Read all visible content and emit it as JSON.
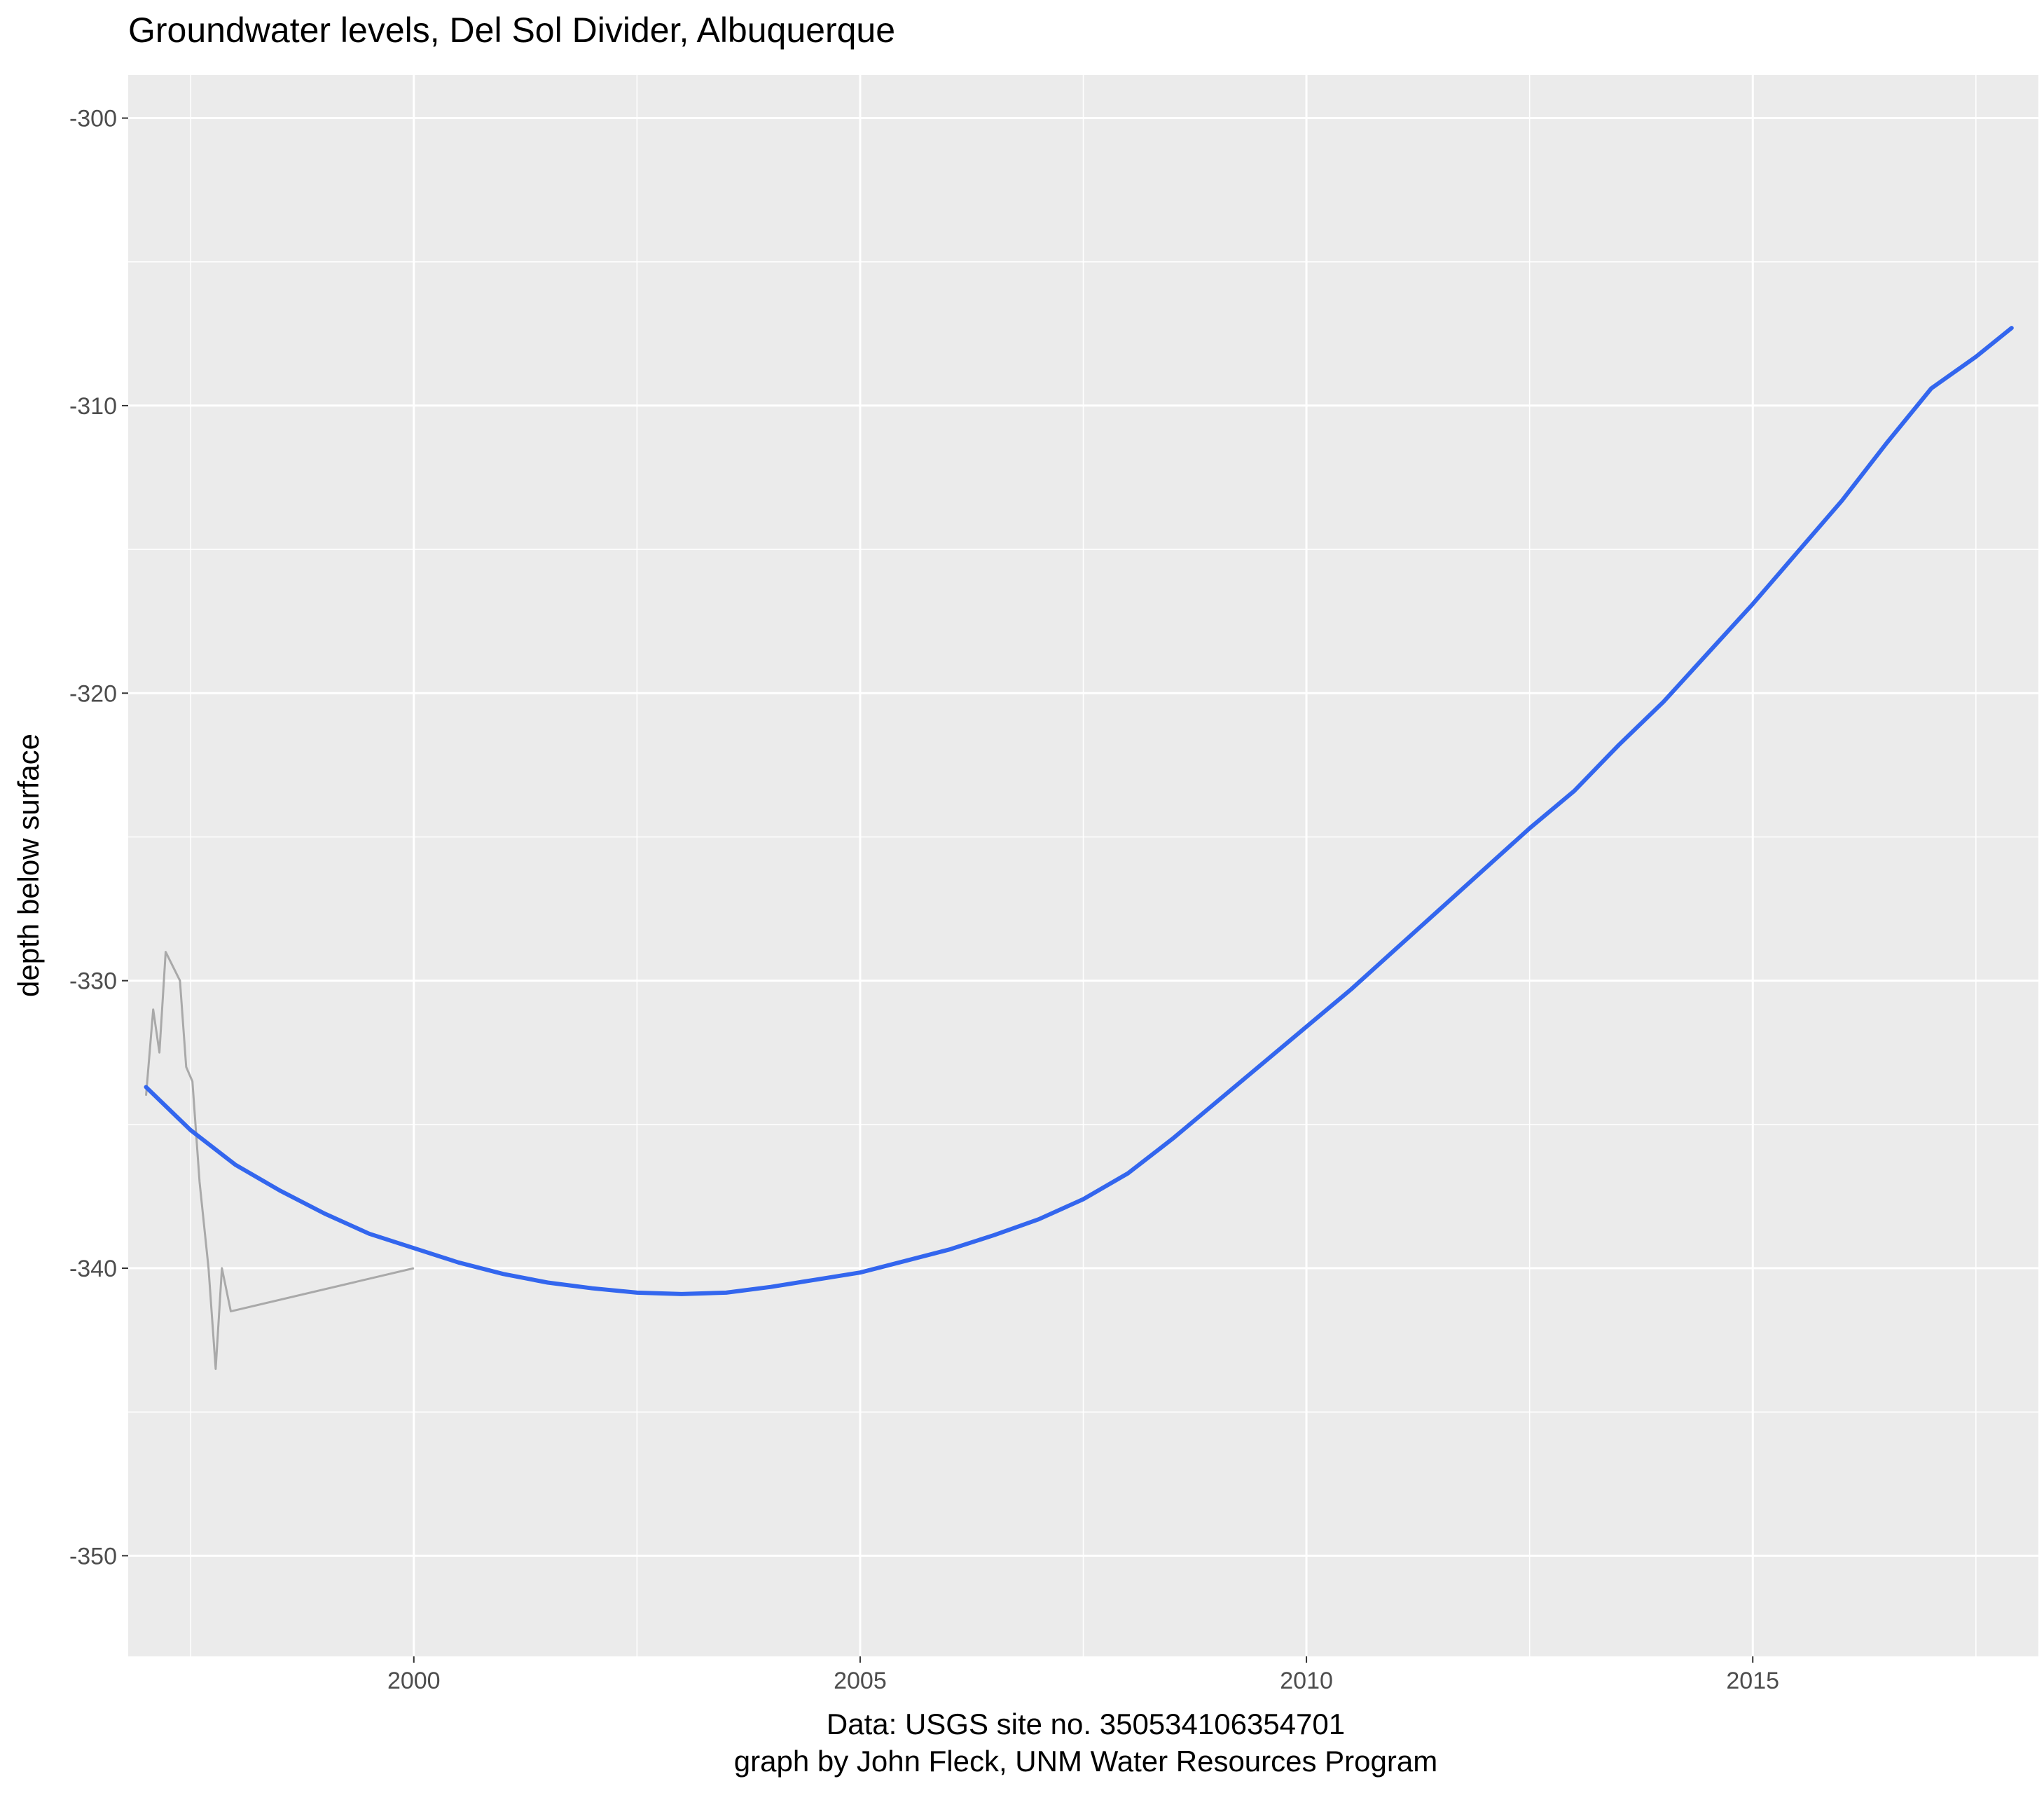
{
  "chart_data": {
    "type": "line",
    "title": "Groundwater levels, Del Sol Divider, Albuquerque",
    "xlabel_lines": [
      "Data: USGS site no. 350534106354701",
      "graph by John Fleck, UNM Water Resources Program"
    ],
    "ylabel": "depth below surface",
    "xlim": [
      1996.8,
      2018.2
    ],
    "ylim": [
      -353.5,
      -298.5
    ],
    "x_ticks": [
      2000,
      2005,
      2010,
      2015
    ],
    "x_tick_labels": [
      "2000",
      "2005",
      "2010",
      "2015"
    ],
    "y_ticks": [
      -350,
      -340,
      -330,
      -320,
      -310,
      -300
    ],
    "y_tick_labels": [
      "-350",
      "-340",
      "-330",
      "-320",
      "-310",
      "-300"
    ],
    "grid": true,
    "legend": "none",
    "colors": {
      "panel_background": "#ebebeb",
      "grid_line": "#ffffff",
      "raw_series": "#a9a9a9",
      "smooth_series": "#3366ee"
    },
    "series": [
      {
        "role": "observed",
        "points": [
          [
            1997.0,
            -334.0
          ],
          [
            1997.08,
            -331.0
          ],
          [
            1997.15,
            -332.5
          ],
          [
            1997.22,
            -329.0
          ],
          [
            1997.3,
            -329.5
          ],
          [
            1997.38,
            -330.0
          ],
          [
            1997.45,
            -333.0
          ],
          [
            1997.52,
            -333.5
          ],
          [
            1997.6,
            -337.0
          ],
          [
            1997.7,
            -340.0
          ],
          [
            1997.78,
            -343.5
          ],
          [
            1997.85,
            -340.0
          ],
          [
            1997.95,
            -341.5
          ],
          [
            2000.0,
            -340.0
          ]
        ]
      },
      {
        "role": "smooth",
        "points": [
          [
            1997.0,
            -333.7
          ],
          [
            1997.5,
            -335.2
          ],
          [
            1998.0,
            -336.4
          ],
          [
            1998.5,
            -337.3
          ],
          [
            1999.0,
            -338.1
          ],
          [
            1999.5,
            -338.8
          ],
          [
            2000.0,
            -339.3
          ],
          [
            2000.5,
            -339.8
          ],
          [
            2001.0,
            -340.2
          ],
          [
            2001.5,
            -340.5
          ],
          [
            2002.0,
            -340.7
          ],
          [
            2002.5,
            -340.85
          ],
          [
            2003.0,
            -340.9
          ],
          [
            2003.5,
            -340.85
          ],
          [
            2004.0,
            -340.65
          ],
          [
            2004.5,
            -340.4
          ],
          [
            2005.0,
            -340.15
          ],
          [
            2005.5,
            -339.75
          ],
          [
            2006.0,
            -339.35
          ],
          [
            2006.5,
            -338.85
          ],
          [
            2007.0,
            -338.3
          ],
          [
            2007.5,
            -337.6
          ],
          [
            2008.0,
            -336.7
          ],
          [
            2008.5,
            -335.5
          ],
          [
            2009.0,
            -334.2
          ],
          [
            2009.5,
            -332.9
          ],
          [
            2010.0,
            -331.6
          ],
          [
            2010.5,
            -330.3
          ],
          [
            2011.0,
            -328.9
          ],
          [
            2011.5,
            -327.5
          ],
          [
            2012.0,
            -326.1
          ],
          [
            2012.5,
            -324.7
          ],
          [
            2013.0,
            -323.4
          ],
          [
            2013.5,
            -321.8
          ],
          [
            2014.0,
            -320.3
          ],
          [
            2014.5,
            -318.6
          ],
          [
            2015.0,
            -316.9
          ],
          [
            2015.5,
            -315.1
          ],
          [
            2016.0,
            -313.3
          ],
          [
            2016.5,
            -311.3
          ],
          [
            2017.0,
            -309.4
          ],
          [
            2017.5,
            -308.3
          ],
          [
            2017.9,
            -307.3
          ]
        ]
      }
    ]
  }
}
